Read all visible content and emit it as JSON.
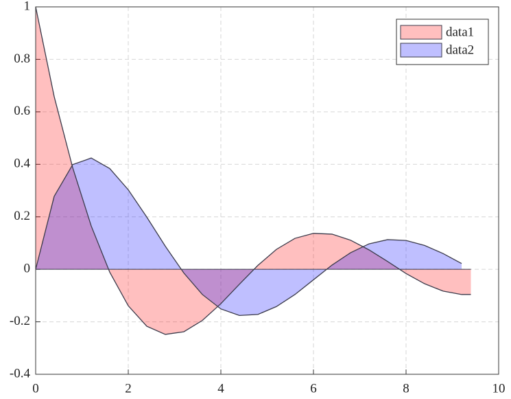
{
  "chart_data": {
    "type": "area",
    "series": [
      {
        "name": "data1",
        "color": "#ff0000",
        "x": [
          0,
          0.4,
          0.8,
          1.2,
          1.6,
          2.0,
          2.4,
          2.8,
          3.2,
          3.6,
          4.0,
          4.4,
          4.8,
          5.2,
          5.6,
          6.0,
          6.4,
          6.8,
          7.2,
          7.6,
          8.0,
          8.4,
          8.8,
          9.2,
          9.4
        ],
        "values": [
          1,
          0.658,
          0.387,
          0.165,
          -0.011,
          -0.139,
          -0.217,
          -0.248,
          -0.238,
          -0.195,
          -0.131,
          -0.057,
          0.015,
          0.076,
          0.118,
          0.137,
          0.134,
          0.111,
          0.074,
          0.03,
          -0.016,
          -0.055,
          -0.083,
          -0.096,
          -0.096
        ]
      },
      {
        "name": "data2",
        "color": "#0000ff",
        "x": [
          0,
          0.4,
          0.8,
          1.2,
          1.6,
          2.0,
          2.4,
          2.8,
          3.2,
          3.6,
          4.0,
          4.4,
          4.8,
          5.2,
          5.6,
          6.0,
          6.4,
          6.8,
          7.2,
          7.6,
          8.0,
          8.4,
          8.8,
          9.2
        ],
        "values": [
          0,
          0.278,
          0.399,
          0.424,
          0.384,
          0.303,
          0.199,
          0.088,
          -0.014,
          -0.096,
          -0.151,
          -0.176,
          -0.172,
          -0.142,
          -0.096,
          -0.04,
          0.016,
          0.063,
          0.097,
          0.113,
          0.11,
          0.091,
          0.06,
          0.022
        ]
      }
    ],
    "xlim": [
      0,
      10
    ],
    "xticks": [
      0,
      2,
      4,
      6,
      8,
      10
    ],
    "ylim": [
      -0.4,
      1
    ],
    "yticks": [
      -0.4,
      -0.2,
      0,
      0.2,
      0.4,
      0.6,
      0.8,
      1
    ],
    "grid": true,
    "legend": "northeast"
  }
}
